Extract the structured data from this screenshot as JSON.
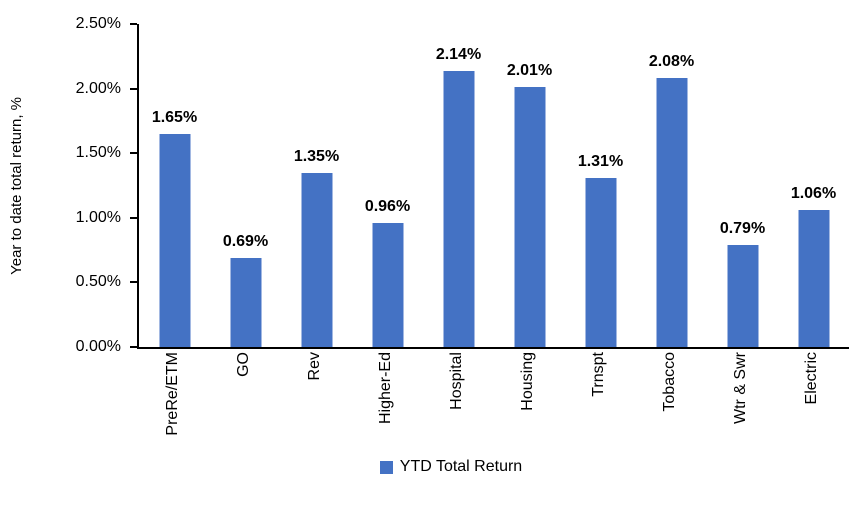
{
  "chart_data": {
    "type": "bar",
    "title": "",
    "categories": [
      "PreRe/ETM",
      "GO",
      "Rev",
      "Higher-Ed",
      "Hospital",
      "Housing",
      "Trnspt",
      "Tobacco",
      "Wtr & Swr",
      "Electric"
    ],
    "values": [
      1.65,
      0.69,
      1.35,
      0.96,
      2.14,
      2.01,
      1.31,
      2.08,
      0.79,
      1.06
    ],
    "value_labels": [
      "1.65%",
      "0.69%",
      "1.35%",
      "0.96%",
      "2.14%",
      "2.01%",
      "1.31%",
      "2.08%",
      "0.79%",
      "1.06%"
    ],
    "xlabel": "",
    "ylabel": "Year to date total return, %",
    "ylim": [
      0,
      2.5
    ],
    "y_ticks": [
      0,
      0.5,
      1,
      1.5,
      2,
      2.5
    ],
    "y_tick_labels": [
      "0.00%",
      "0.50%",
      "1.00%",
      "1.50%",
      "2.00%",
      "2.50%"
    ],
    "grid": false,
    "legend_position": "bottom",
    "legend": [
      "YTD Total Return"
    ],
    "bar_color": "#4472C4",
    "axis_color": "#000000",
    "text_color": "#000000"
  }
}
